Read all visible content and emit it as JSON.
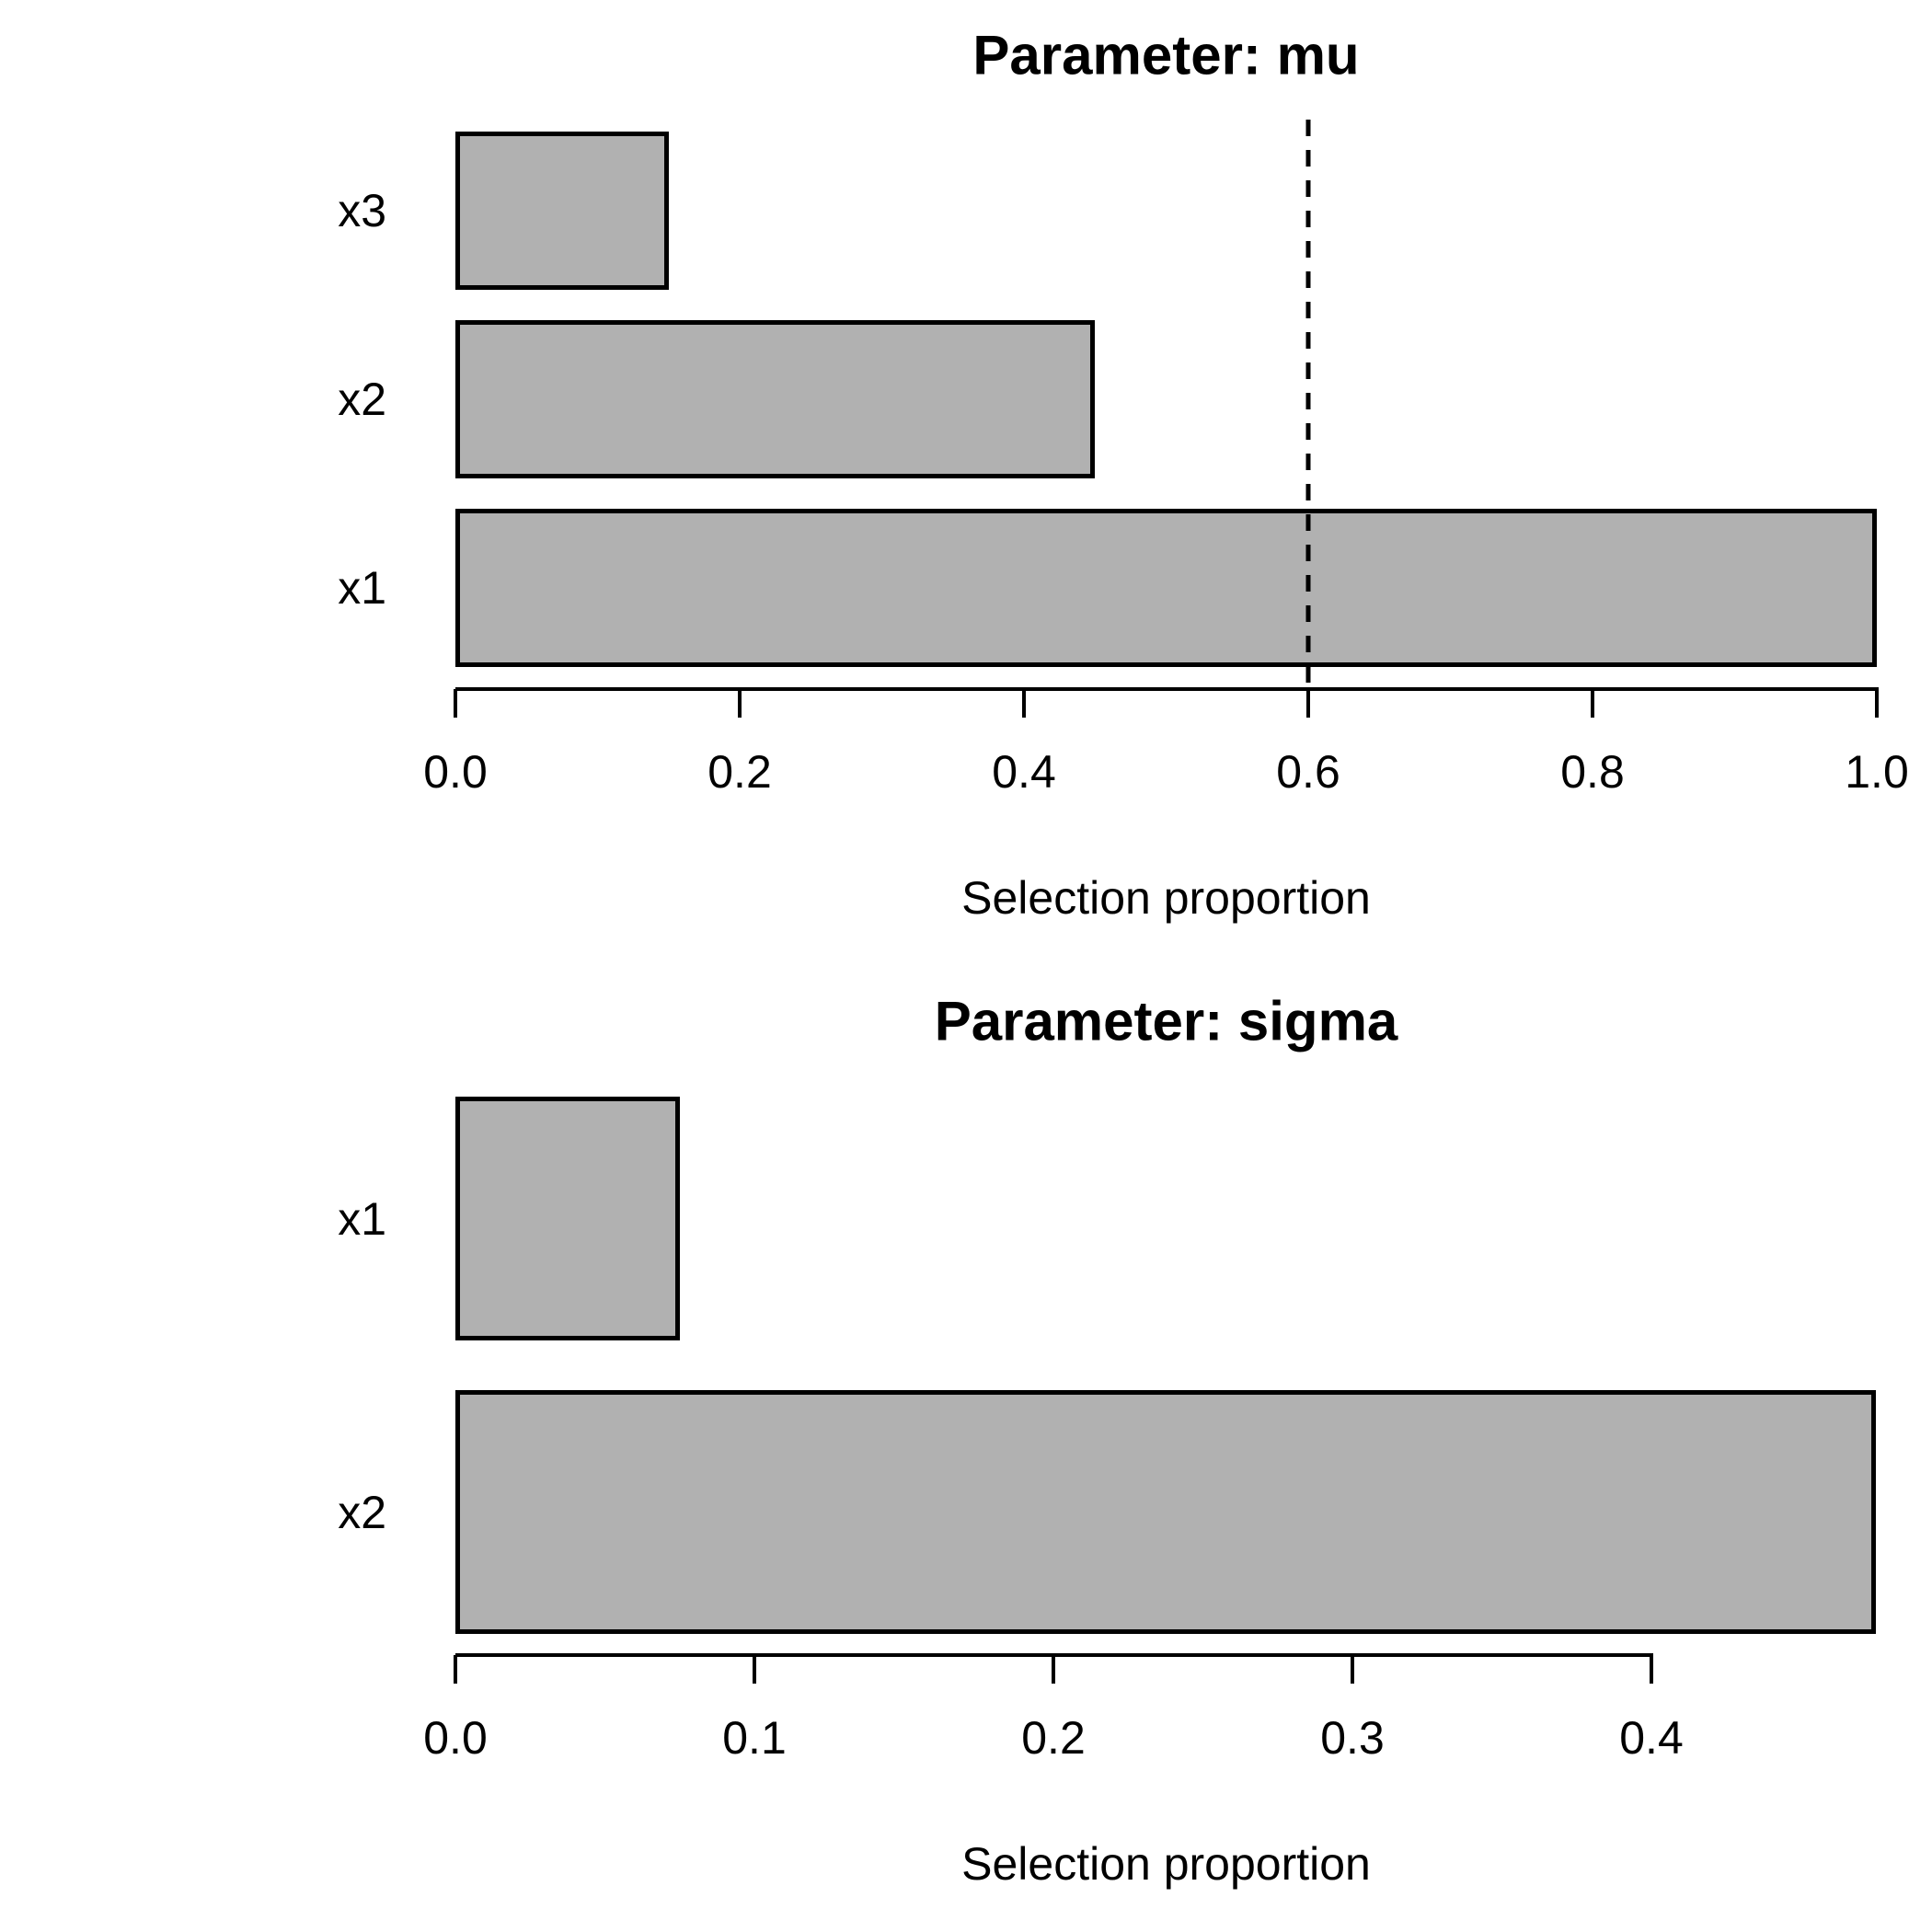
{
  "figure": {
    "background": "#FFFFFF",
    "bar_fill": "#B1B1B1",
    "bar_border": "#000000",
    "axis_color": "#000000",
    "text_color": "#000000"
  },
  "chart_data": [
    {
      "type": "bar",
      "orientation": "horizontal",
      "title": "Parameter: mu",
      "xlabel": "Selection proportion",
      "ylabel": "",
      "categories": [
        "x3",
        "x2",
        "x1"
      ],
      "values": [
        0.15,
        0.45,
        1.0
      ],
      "xlim": [
        0.0,
        1.0
      ],
      "xtick_labels": [
        "0.0",
        "0.2",
        "0.4",
        "0.6",
        "0.8",
        "1.0"
      ],
      "xtick_values": [
        0.0,
        0.2,
        0.4,
        0.6,
        0.8,
        1.0
      ],
      "threshold_line": {
        "value": 0.6,
        "style": "dashed",
        "color": "#000000"
      },
      "grid": false,
      "legend": null
    },
    {
      "type": "bar",
      "orientation": "horizontal",
      "title": "Parameter: sigma",
      "xlabel": "Selection proportion",
      "ylabel": "",
      "categories": [
        "x1",
        "x2"
      ],
      "values": [
        0.075,
        0.475
      ],
      "xlim": [
        0.0,
        0.475
      ],
      "xtick_labels": [
        "0.0",
        "0.1",
        "0.2",
        "0.3",
        "0.4"
      ],
      "xtick_values": [
        0.0,
        0.1,
        0.2,
        0.3,
        0.4
      ],
      "threshold_line": null,
      "grid": false,
      "legend": null
    }
  ]
}
